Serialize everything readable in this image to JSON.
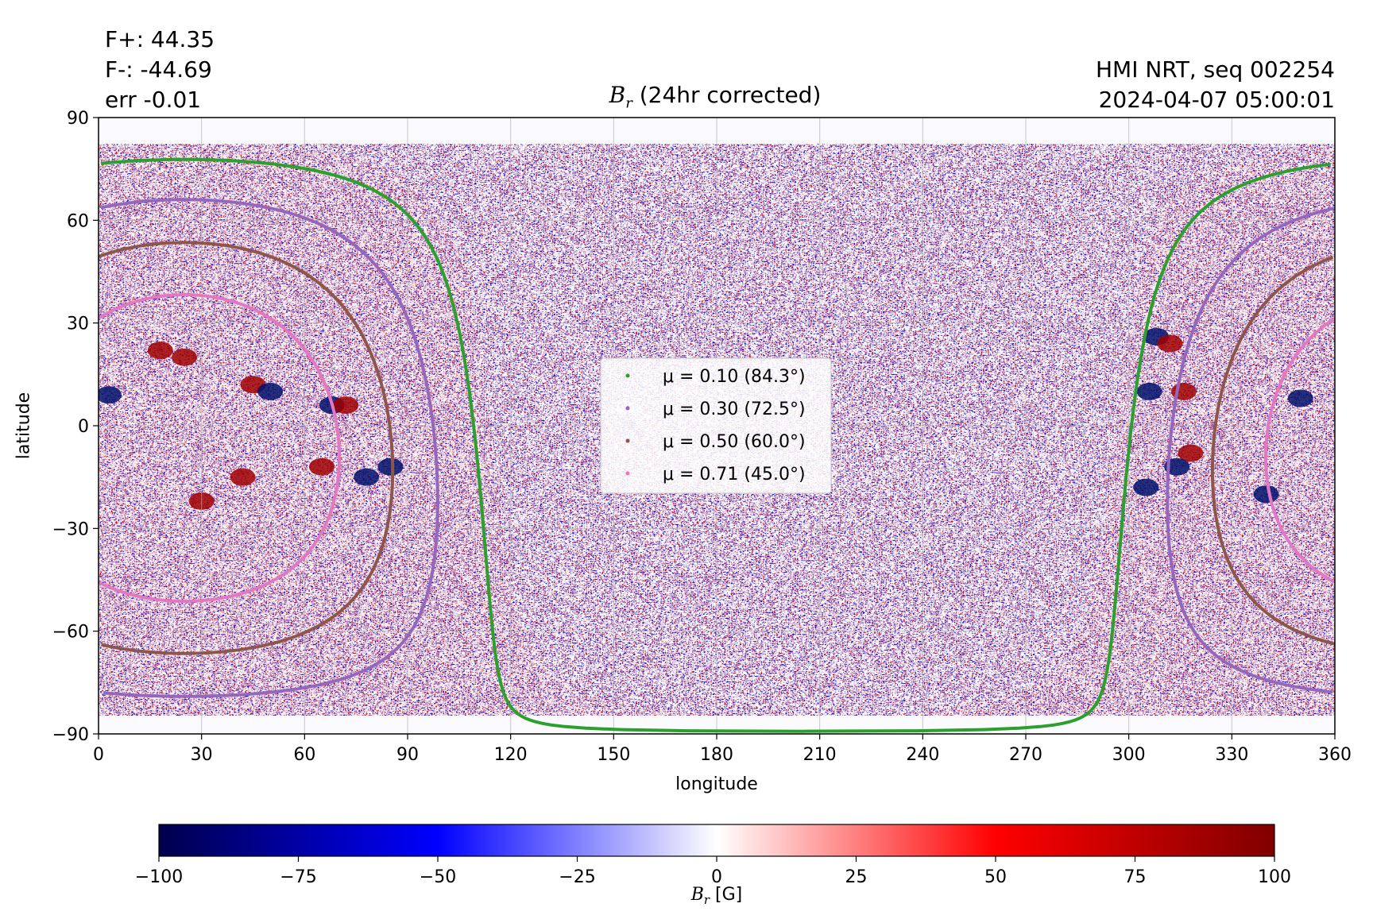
{
  "header": {
    "flux_pos": "F+: 44.35",
    "flux_neg": "F-: -44.69",
    "err": "err -0.01",
    "source": "HMI NRT, seq 002254",
    "timestamp": "2024-04-07 05:00:01"
  },
  "chart_data": [
    {
      "type": "heatmap",
      "title_symbol": "B",
      "title_subscript": "r",
      "title_suffix": " (24hr corrected)",
      "xlabel": "longitude",
      "ylabel": "latitude",
      "xlim": [
        0,
        360
      ],
      "ylim": [
        -90,
        90
      ],
      "x_ticks": [
        0,
        30,
        60,
        90,
        120,
        150,
        180,
        210,
        240,
        270,
        300,
        330,
        360
      ],
      "y_ticks": [
        {
          "value": 90,
          "label": "90"
        },
        {
          "value": 60,
          "label": "60"
        },
        {
          "value": 30,
          "label": "30"
        },
        {
          "value": 0,
          "label": "0"
        },
        {
          "value": -30,
          "label": "−30"
        },
        {
          "value": -60,
          "label": "−60"
        },
        {
          "value": -90,
          "label": "−90"
        }
      ],
      "grid": true,
      "disk_center_longitude": 25,
      "disk_center_latitude": -6.5,
      "legend_position": "center",
      "series": [
        {
          "name": "μ = 0.10 (84.3°)",
          "mu": 0.1,
          "angle_deg": 84.3,
          "color": "#2ca02c"
        },
        {
          "name": "μ = 0.30 (72.5°)",
          "mu": 0.3,
          "angle_deg": 72.5,
          "color": "#9467bd"
        },
        {
          "name": "μ = 0.50 (60.0°)",
          "mu": 0.5,
          "angle_deg": 60.0,
          "color": "#8c564b"
        },
        {
          "name": "μ = 0.71 (45.0°)",
          "mu": 0.71,
          "angle_deg": 45.0,
          "color": "#e377c2"
        }
      ],
      "active_regions": [
        {
          "lon": 3,
          "lat": 9,
          "sign": "negative"
        },
        {
          "lon": 18,
          "lat": 22,
          "sign": "positive"
        },
        {
          "lon": 25,
          "lat": 20,
          "sign": "positive"
        },
        {
          "lon": 45,
          "lat": 12,
          "sign": "positive"
        },
        {
          "lon": 50,
          "lat": 10,
          "sign": "negative"
        },
        {
          "lon": 68,
          "lat": 6,
          "sign": "negative"
        },
        {
          "lon": 72,
          "lat": 6,
          "sign": "positive"
        },
        {
          "lon": 30,
          "lat": -22,
          "sign": "positive"
        },
        {
          "lon": 42,
          "lat": -15,
          "sign": "positive"
        },
        {
          "lon": 65,
          "lat": -12,
          "sign": "positive"
        },
        {
          "lon": 78,
          "lat": -15,
          "sign": "negative"
        },
        {
          "lon": 85,
          "lat": -12,
          "sign": "negative"
        },
        {
          "lon": 308,
          "lat": 26,
          "sign": "negative"
        },
        {
          "lon": 312,
          "lat": 24,
          "sign": "positive"
        },
        {
          "lon": 316,
          "lat": 10,
          "sign": "positive"
        },
        {
          "lon": 306,
          "lat": 10,
          "sign": "negative"
        },
        {
          "lon": 318,
          "lat": -8,
          "sign": "positive"
        },
        {
          "lon": 314,
          "lat": -12,
          "sign": "negative"
        },
        {
          "lon": 305,
          "lat": -18,
          "sign": "negative"
        },
        {
          "lon": 350,
          "lat": 8,
          "sign": "negative"
        },
        {
          "lon": 340,
          "lat": -20,
          "sign": "negative"
        }
      ]
    },
    {
      "type": "colorbar",
      "label_symbol": "B",
      "label_subscript": "r",
      "label_suffix": " [G]",
      "range": [
        -100,
        100
      ],
      "ticks": [
        {
          "value": -100,
          "label": "−100"
        },
        {
          "value": -75,
          "label": "−75"
        },
        {
          "value": -50,
          "label": "−50"
        },
        {
          "value": -25,
          "label": "−25"
        },
        {
          "value": 0,
          "label": "0"
        },
        {
          "value": 25,
          "label": "25"
        },
        {
          "value": 50,
          "label": "50"
        },
        {
          "value": 75,
          "label": "75"
        },
        {
          "value": 100,
          "label": "100"
        }
      ],
      "colormap": [
        "#00004c",
        "#0000ff",
        "#ffffff",
        "#ff0000",
        "#800000"
      ]
    }
  ]
}
